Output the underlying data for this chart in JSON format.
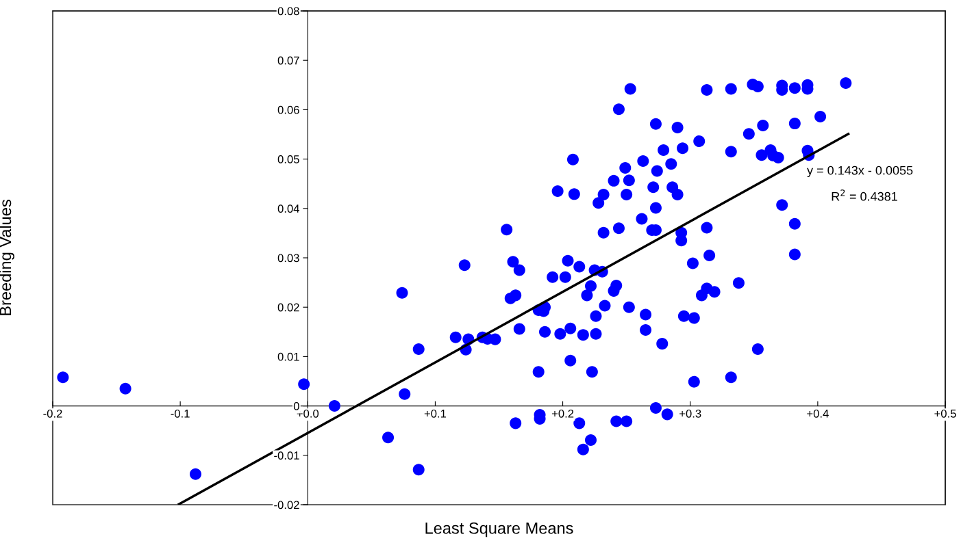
{
  "chart_data": {
    "type": "scatter",
    "xlabel": "Least Square Means",
    "ylabel": "Breeding Values",
    "xlim": [
      -0.2,
      0.5
    ],
    "ylim": [
      -0.02,
      0.08
    ],
    "xticks": [
      -0.2,
      -0.1,
      {
        "value": 0,
        "label": "+0.0"
      },
      {
        "value": 0.1,
        "label": "+0.1"
      },
      {
        "value": 0.2,
        "label": "+0.2"
      },
      {
        "value": 0.3,
        "label": "+0.3"
      },
      {
        "value": 0.4,
        "label": "+0.4"
      },
      {
        "value": 0.5,
        "label": "+0.5"
      }
    ],
    "yticks": [
      -0.02,
      -0.01,
      0,
      0.01,
      0.02,
      0.03,
      0.04,
      0.05,
      0.06,
      0.07,
      0.08
    ],
    "grid": false,
    "marker": "circle",
    "annotations": [
      "y = 0.143x - 0.0055",
      "R$^{2}$ = 0.4381"
    ],
    "series": [
      {
        "color": "#0000ff",
        "x": [
          -0.192,
          -0.143,
          -0.088,
          -0.003,
          0.021,
          0.063,
          0.074,
          0.076,
          0.087,
          0.087,
          0.116,
          0.123,
          0.124,
          0.126,
          0.137,
          0.141,
          0.147,
          0.156,
          0.159,
          0.161,
          0.163,
          0.163,
          0.166,
          0.166,
          0.181,
          0.181,
          0.182,
          0.182,
          0.185,
          0.186,
          0.186,
          0.192,
          0.196,
          0.198,
          0.202,
          0.204,
          0.206,
          0.206,
          0.208,
          0.209,
          0.213,
          0.216,
          0.213,
          0.216,
          0.219,
          0.222,
          0.223,
          0.222,
          0.225,
          0.226,
          0.226,
          0.231,
          0.228,
          0.232,
          0.232,
          0.233,
          0.24,
          0.24,
          0.242,
          0.242,
          0.244,
          0.244,
          0.249,
          0.25,
          0.25,
          0.252,
          0.253,
          0.252,
          0.263,
          0.262,
          0.265,
          0.265,
          0.271,
          0.27,
          0.273,
          0.273,
          0.274,
          0.273,
          0.273,
          0.278,
          0.279,
          0.282,
          0.285,
          0.286,
          0.29,
          0.29,
          0.293,
          0.293,
          0.294,
          0.295,
          0.303,
          0.303,
          0.302,
          0.307,
          0.309,
          0.313,
          0.313,
          0.313,
          0.315,
          0.319,
          0.332,
          0.332,
          0.332,
          0.338,
          0.346,
          0.349,
          0.353,
          0.353,
          0.357,
          0.356,
          0.363,
          0.369,
          0.365,
          0.372,
          0.372,
          0.372,
          0.382,
          0.382,
          0.382,
          0.382,
          0.392,
          0.392,
          0.392,
          0.393,
          0.402,
          0.422
        ],
        "values": [
          0.0058,
          0.0035,
          -0.0138,
          0.0044,
          0.0,
          -0.0064,
          0.0229,
          0.0024,
          0.0115,
          -0.0129,
          0.0139,
          0.0285,
          0.0114,
          0.0135,
          0.0139,
          0.0136,
          0.0135,
          0.0357,
          0.0218,
          0.0292,
          0.0224,
          -0.0035,
          0.0275,
          0.0156,
          0.0069,
          0.0194,
          -0.0018,
          -0.0026,
          0.0192,
          0.02,
          0.015,
          0.0261,
          0.0435,
          0.0146,
          0.0261,
          0.0294,
          0.0157,
          0.0092,
          0.0499,
          0.0429,
          0.0282,
          0.0144,
          -0.0035,
          -0.0088,
          0.0224,
          0.0243,
          0.0069,
          -0.0069,
          0.0275,
          0.0146,
          0.0182,
          0.0272,
          0.0411,
          0.0428,
          0.0351,
          0.0203,
          0.0456,
          0.0233,
          0.0244,
          -0.0031,
          0.036,
          0.0601,
          0.0482,
          -0.0031,
          0.0428,
          0.0457,
          0.0642,
          0.02,
          0.0496,
          0.0379,
          0.0185,
          0.0154,
          0.0443,
          0.0356,
          0.0356,
          0.0401,
          0.0476,
          0.0571,
          -0.0004,
          0.0126,
          0.0518,
          -0.0017,
          0.049,
          0.0443,
          0.0564,
          0.0428,
          0.0351,
          0.0335,
          0.0522,
          0.0182,
          0.0178,
          0.0049,
          0.0289,
          0.0536,
          0.0224,
          0.0361,
          0.064,
          0.0238,
          0.0305,
          0.0231,
          0.0058,
          0.0515,
          0.0642,
          0.0249,
          0.0551,
          0.0651,
          0.0647,
          0.0115,
          0.0568,
          0.0508,
          0.0518,
          0.0503,
          0.0507,
          0.0649,
          0.064,
          0.0407,
          0.0644,
          0.0572,
          0.0369,
          0.0307,
          0.065,
          0.0642,
          0.0517,
          0.0508,
          0.0586,
          0.0654
        ]
      },
      {
        "type": "line",
        "color": "#000000",
        "marker": "none",
        "line_style": "solid",
        "x": [
          -0.101,
          0.424
        ],
        "values": [
          -0.0199,
          0.0551
        ]
      }
    ]
  }
}
